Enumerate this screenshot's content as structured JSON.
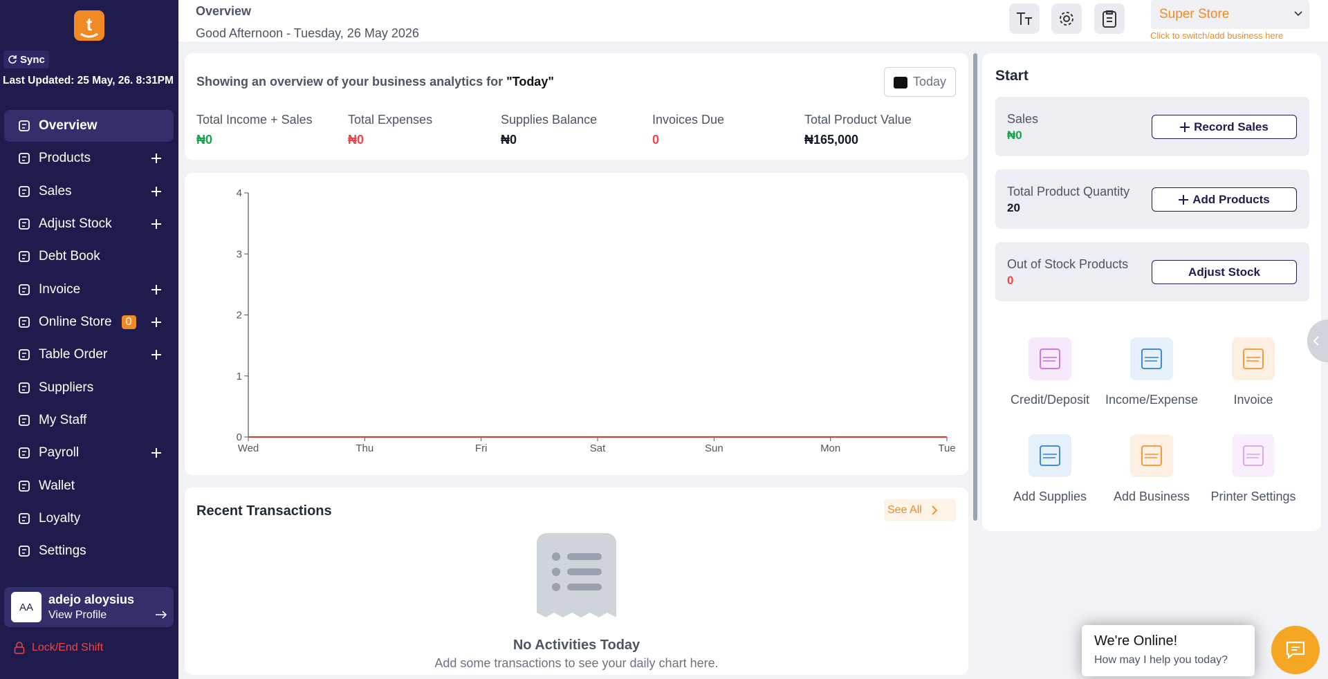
{
  "sidebar": {
    "sync": "Sync",
    "last_updated": "Last Updated: 25 May, 26. 8:31PM",
    "menu": [
      {
        "label": "Overview",
        "active": true
      },
      {
        "label": "Products",
        "expandable": true
      },
      {
        "label": "Sales",
        "expandable": true
      },
      {
        "label": "Adjust Stock",
        "expandable": true
      },
      {
        "label": "Debt Book"
      },
      {
        "label": "Invoice",
        "expandable": true
      },
      {
        "label": "Online Store",
        "badge": "0",
        "expandable": true
      },
      {
        "label": "Table Order",
        "expandable": true
      },
      {
        "label": "Suppliers"
      },
      {
        "label": "My Staff"
      },
      {
        "label": "Payroll",
        "expandable": true
      },
      {
        "label": "Wallet"
      },
      {
        "label": "Loyalty"
      },
      {
        "label": "Settings"
      }
    ],
    "profile": {
      "initials": "AA",
      "name": "adejo aloysius",
      "link": "View Profile"
    },
    "lock": "Lock/End Shift"
  },
  "header": {
    "title": "Overview",
    "greeting": "Good Afternoon - Tuesday, 26 May 2026",
    "store": "Super Store",
    "store_hint": "Click to switch/add business here"
  },
  "summary": {
    "intro": "Showing an overview of your business analytics for ",
    "period": "\"Today\"",
    "filter": "Today",
    "stats": [
      {
        "label": "Total Income + Sales",
        "value": "₦0",
        "color": "#16a34a"
      },
      {
        "label": "Total Expenses",
        "value": "₦0",
        "color": "#ef4444"
      },
      {
        "label": "Supplies Balance",
        "value": "₦0",
        "color": "#111827"
      },
      {
        "label": "Invoices Due",
        "value": "0",
        "color": "#ef4444"
      },
      {
        "label": "Total Product Value",
        "value": "₦165,000",
        "color": "#111827"
      }
    ]
  },
  "chart_data": {
    "type": "line",
    "categories": [
      "Wed",
      "Thu",
      "Fri",
      "Sat",
      "Sun",
      "Mon",
      "Tue"
    ],
    "series": [
      {
        "color": "#e53935",
        "values": [
          0,
          0,
          0,
          0,
          0,
          0,
          0
        ]
      }
    ],
    "ylim": [
      0,
      4
    ],
    "yticks": [
      0,
      1,
      2,
      3,
      4
    ]
  },
  "recent": {
    "title": "Recent Transactions",
    "see_all": "See All",
    "empty_title": "No Activities Today",
    "empty_text": "Add some transactions to see your daily chart here."
  },
  "start": {
    "title": "Start",
    "cards": [
      {
        "label": "Sales",
        "value": "₦0",
        "color": "#16a34a",
        "action": "Record Sales",
        "plus": true
      },
      {
        "label": "Total Product Quantity",
        "value": "20",
        "color": "#111827",
        "action": "Add Products",
        "plus": true
      },
      {
        "label": "Out of Stock Products",
        "value": "0",
        "color": "#ef4444",
        "action": "Adjust Stock",
        "plus": false
      }
    ],
    "shortcuts": [
      {
        "label": "Credit/Deposit",
        "color": "#c56be3",
        "bg": "#f6e9fb"
      },
      {
        "label": "Income/Expense",
        "color": "#2f7fd0",
        "bg": "#e6f0fb"
      },
      {
        "label": "Invoice",
        "color": "#f0922b",
        "bg": "#fdf0e2"
      },
      {
        "label": "Add Supplies",
        "color": "#2f7fd0",
        "bg": "#e6f0fb"
      },
      {
        "label": "Add Business",
        "color": "#f0922b",
        "bg": "#fdf0e2"
      },
      {
        "label": "Printer Settings",
        "color": "#d7a0ea",
        "bg": "#f8eefc"
      }
    ]
  },
  "chat": {
    "title": "We're Online!",
    "text": "How may I help you today?"
  }
}
